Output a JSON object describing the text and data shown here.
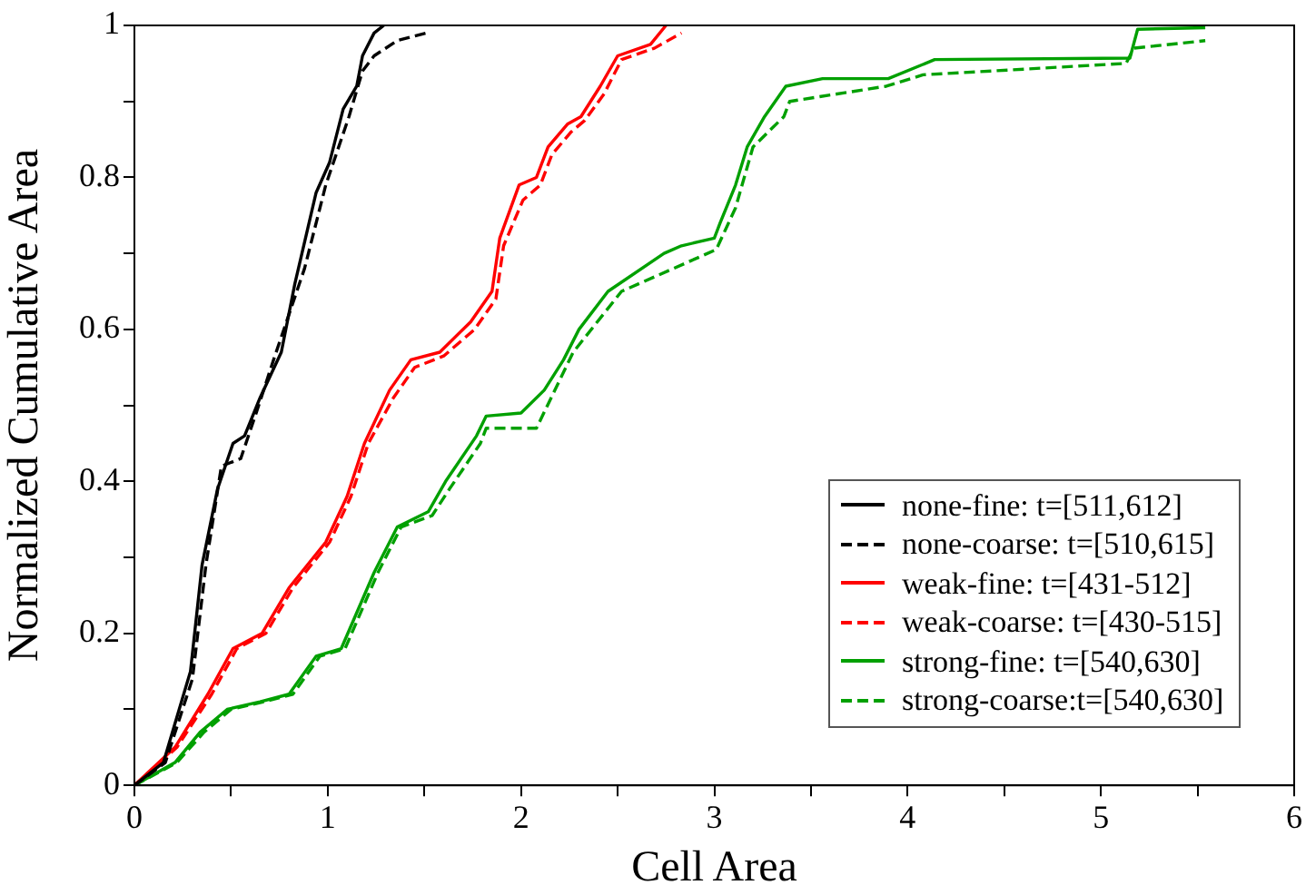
{
  "chart_data": {
    "type": "line",
    "xlabel": "Cell Area",
    "ylabel": "Normalized Cumulative Area",
    "xlim": [
      0,
      6
    ],
    "xticks": [
      0,
      {
        "value": 0.5,
        "label": null
      },
      1,
      {
        "value": 1.5,
        "label": null
      },
      2,
      {
        "value": 2.5,
        "label": null
      },
      3,
      {
        "value": 3.5,
        "label": null
      },
      4,
      {
        "value": 4.5,
        "label": null
      },
      5,
      {
        "value": 5.5,
        "label": null
      },
      6
    ],
    "ylim": [
      0,
      1
    ],
    "yticks": [
      0,
      {
        "value": 0.1,
        "label": null
      },
      0.2,
      {
        "value": 0.3,
        "label": null
      },
      0.4,
      {
        "value": 0.5,
        "label": null
      },
      0.6,
      {
        "value": 0.7,
        "label": null
      },
      0.8,
      {
        "value": 0.9,
        "label": null
      },
      1
    ],
    "grid": false,
    "legend": "bottom right",
    "marker": "none",
    "series": [
      {
        "name": "none-fine: t=[511,612]",
        "color": "#000000",
        "line_style": "solid",
        "x": [
          0,
          0.15,
          0.29,
          0.35,
          0.43,
          0.51,
          0.57,
          0.65,
          0.76,
          0.83,
          0.94,
          1.01,
          1.08,
          1.15,
          1.18,
          1.24,
          1.29
        ],
        "values": [
          0,
          0.03,
          0.15,
          0.29,
          0.39,
          0.45,
          0.46,
          0.51,
          0.57,
          0.66,
          0.78,
          0.82,
          0.89,
          0.92,
          0.96,
          0.99,
          1.0
        ]
      },
      {
        "name": "none-coarse: t=[510,615]",
        "color": "#000000",
        "line_style": "dashed",
        "x": [
          0,
          0.16,
          0.3,
          0.37,
          0.45,
          0.55,
          0.63,
          0.72,
          0.88,
          0.99,
          1.11,
          1.18,
          1.24,
          1.36,
          1.51
        ],
        "values": [
          0,
          0.03,
          0.14,
          0.29,
          0.42,
          0.43,
          0.49,
          0.56,
          0.68,
          0.79,
          0.88,
          0.94,
          0.96,
          0.98,
          0.99
        ]
      },
      {
        "name": "weak-fine: t=[431-512]",
        "color": "#ff0000",
        "line_style": "solid",
        "x": [
          0,
          0.21,
          0.38,
          0.51,
          0.66,
          0.8,
          0.99,
          1.1,
          1.19,
          1.32,
          1.43,
          1.58,
          1.74,
          1.85,
          1.89,
          1.99,
          2.08,
          2.14,
          2.24,
          2.31,
          2.41,
          2.5,
          2.67,
          2.75
        ],
        "values": [
          0,
          0.05,
          0.12,
          0.18,
          0.2,
          0.26,
          0.32,
          0.38,
          0.45,
          0.52,
          0.56,
          0.57,
          0.61,
          0.65,
          0.72,
          0.79,
          0.8,
          0.84,
          0.87,
          0.88,
          0.92,
          0.96,
          0.975,
          1.0
        ]
      },
      {
        "name": "weak-coarse: t=[430-515]",
        "color": "#ff0000",
        "line_style": "dashed",
        "x": [
          0,
          0.22,
          0.4,
          0.53,
          0.68,
          0.82,
          1.01,
          1.12,
          1.21,
          1.34,
          1.45,
          1.6,
          1.76,
          1.87,
          1.91,
          2.01,
          2.1,
          2.16,
          2.26,
          2.33,
          2.43,
          2.52,
          2.69,
          2.83
        ],
        "values": [
          0,
          0.05,
          0.12,
          0.18,
          0.2,
          0.26,
          0.32,
          0.38,
          0.45,
          0.51,
          0.55,
          0.565,
          0.6,
          0.64,
          0.71,
          0.77,
          0.79,
          0.83,
          0.86,
          0.875,
          0.91,
          0.955,
          0.97,
          0.99
        ]
      },
      {
        "name": "strong-fine: t=[540,630]",
        "color": "#00a000",
        "line_style": "solid",
        "x": [
          0,
          0.21,
          0.34,
          0.48,
          0.65,
          0.8,
          0.94,
          1.07,
          1.24,
          1.36,
          1.52,
          1.61,
          1.77,
          1.82,
          2.0,
          2.12,
          2.22,
          2.3,
          2.45,
          2.74,
          2.83,
          3.0,
          3.03,
          3.11,
          3.17,
          3.26,
          3.37,
          3.56,
          3.9,
          4.14,
          5.15,
          5.19,
          5.54
        ],
        "values": [
          0,
          0.03,
          0.07,
          0.1,
          0.11,
          0.12,
          0.17,
          0.18,
          0.28,
          0.34,
          0.36,
          0.4,
          0.46,
          0.486,
          0.49,
          0.52,
          0.56,
          0.6,
          0.65,
          0.7,
          0.71,
          0.72,
          0.74,
          0.79,
          0.84,
          0.88,
          0.92,
          0.93,
          0.93,
          0.955,
          0.957,
          0.995,
          0.997
        ]
      },
      {
        "name": "strong-coarse:t=[540,630]",
        "color": "#00a000",
        "line_style": "dashed",
        "x": [
          0,
          0.22,
          0.36,
          0.5,
          0.67,
          0.82,
          0.96,
          1.09,
          1.26,
          1.38,
          1.54,
          1.63,
          1.79,
          1.82,
          2.08,
          2.27,
          2.52,
          3.01,
          3.11,
          3.2,
          3.36,
          3.39,
          3.89,
          4.08,
          5.13,
          5.17,
          5.54
        ],
        "values": [
          0,
          0.03,
          0.07,
          0.1,
          0.11,
          0.12,
          0.17,
          0.18,
          0.28,
          0.34,
          0.355,
          0.39,
          0.45,
          0.47,
          0.47,
          0.57,
          0.65,
          0.705,
          0.76,
          0.84,
          0.88,
          0.9,
          0.92,
          0.935,
          0.95,
          0.97,
          0.98
        ]
      }
    ]
  }
}
